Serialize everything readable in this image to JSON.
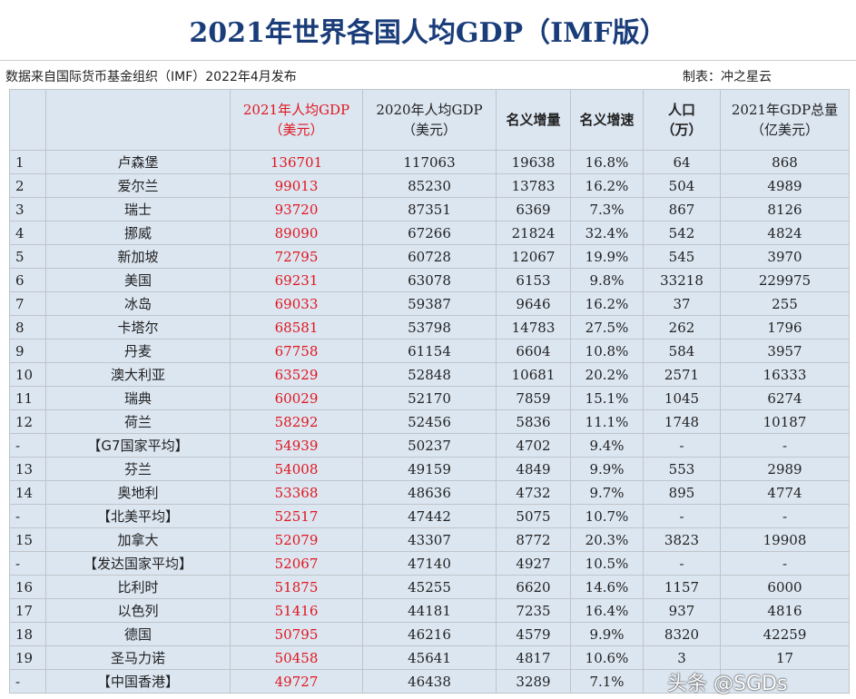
{
  "title": "2021年世界各国人均GDP（IMF版）",
  "source_note": "数据来自国际货币基金组织（IMF）2022年4月发布",
  "maker": "制表：冲之星云",
  "columns": {
    "gdp2021": [
      "2021年人均GDP",
      "（美元）"
    ],
    "gdp2020": [
      "2020年人均GDP",
      "（美元）"
    ],
    "growth": "名义增量",
    "rate": "名义增速",
    "pop": [
      "人口",
      "（万）"
    ],
    "total": [
      "2021年GDP总量",
      "（亿美元）"
    ]
  },
  "rows": [
    {
      "rank": "1",
      "country": "卢森堡",
      "gdp2021": "136701",
      "gdp2020": "117063",
      "growth": "19638",
      "rate": "16.8%",
      "pop": "64",
      "total": "868"
    },
    {
      "rank": "2",
      "country": "爱尔兰",
      "gdp2021": "99013",
      "gdp2020": "85230",
      "growth": "13783",
      "rate": "16.2%",
      "pop": "504",
      "total": "4989"
    },
    {
      "rank": "3",
      "country": "瑞士",
      "gdp2021": "93720",
      "gdp2020": "87351",
      "growth": "6369",
      "rate": "7.3%",
      "pop": "867",
      "total": "8126"
    },
    {
      "rank": "4",
      "country": "挪威",
      "gdp2021": "89090",
      "gdp2020": "67266",
      "growth": "21824",
      "rate": "32.4%",
      "pop": "542",
      "total": "4824"
    },
    {
      "rank": "5",
      "country": "新加坡",
      "gdp2021": "72795",
      "gdp2020": "60728",
      "growth": "12067",
      "rate": "19.9%",
      "pop": "545",
      "total": "3970"
    },
    {
      "rank": "6",
      "country": "美国",
      "gdp2021": "69231",
      "gdp2020": "63078",
      "growth": "6153",
      "rate": "9.8%",
      "pop": "33218",
      "total": "229975"
    },
    {
      "rank": "7",
      "country": "冰岛",
      "gdp2021": "69033",
      "gdp2020": "59387",
      "growth": "9646",
      "rate": "16.2%",
      "pop": "37",
      "total": "255"
    },
    {
      "rank": "8",
      "country": "卡塔尔",
      "gdp2021": "68581",
      "gdp2020": "53798",
      "growth": "14783",
      "rate": "27.5%",
      "pop": "262",
      "total": "1796"
    },
    {
      "rank": "9",
      "country": "丹麦",
      "gdp2021": "67758",
      "gdp2020": "61154",
      "growth": "6604",
      "rate": "10.8%",
      "pop": "584",
      "total": "3957"
    },
    {
      "rank": "10",
      "country": "澳大利亚",
      "gdp2021": "63529",
      "gdp2020": "52848",
      "growth": "10681",
      "rate": "20.2%",
      "pop": "2571",
      "total": "16333"
    },
    {
      "rank": "11",
      "country": "瑞典",
      "gdp2021": "60029",
      "gdp2020": "52170",
      "growth": "7859",
      "rate": "15.1%",
      "pop": "1045",
      "total": "6274"
    },
    {
      "rank": "12",
      "country": "荷兰",
      "gdp2021": "58292",
      "gdp2020": "52456",
      "growth": "5836",
      "rate": "11.1%",
      "pop": "1748",
      "total": "10187"
    },
    {
      "rank": "-",
      "country": "【G7国家平均】",
      "gdp2021": "54939",
      "gdp2020": "50237",
      "growth": "4702",
      "rate": "9.4%",
      "pop": "-",
      "total": "-"
    },
    {
      "rank": "13",
      "country": "芬兰",
      "gdp2021": "54008",
      "gdp2020": "49159",
      "growth": "4849",
      "rate": "9.9%",
      "pop": "553",
      "total": "2989"
    },
    {
      "rank": "14",
      "country": "奥地利",
      "gdp2021": "53368",
      "gdp2020": "48636",
      "growth": "4732",
      "rate": "9.7%",
      "pop": "895",
      "total": "4774"
    },
    {
      "rank": "-",
      "country": "【北美平均】",
      "gdp2021": "52517",
      "gdp2020": "47442",
      "growth": "5075",
      "rate": "10.7%",
      "pop": "-",
      "total": "-"
    },
    {
      "rank": "15",
      "country": "加拿大",
      "gdp2021": "52079",
      "gdp2020": "43307",
      "growth": "8772",
      "rate": "20.3%",
      "pop": "3823",
      "total": "19908"
    },
    {
      "rank": "-",
      "country": "【发达国家平均】",
      "gdp2021": "52067",
      "gdp2020": "47140",
      "growth": "4927",
      "rate": "10.5%",
      "pop": "-",
      "total": "-"
    },
    {
      "rank": "16",
      "country": "比利时",
      "gdp2021": "51875",
      "gdp2020": "45255",
      "growth": "6620",
      "rate": "14.6%",
      "pop": "1157",
      "total": "6000"
    },
    {
      "rank": "17",
      "country": "以色列",
      "gdp2021": "51416",
      "gdp2020": "44181",
      "growth": "7235",
      "rate": "16.4%",
      "pop": "937",
      "total": "4816"
    },
    {
      "rank": "18",
      "country": "德国",
      "gdp2021": "50795",
      "gdp2020": "46216",
      "growth": "4579",
      "rate": "9.9%",
      "pop": "8320",
      "total": "42259"
    },
    {
      "rank": "19",
      "country": "圣马力诺",
      "gdp2021": "50458",
      "gdp2020": "45641",
      "growth": "4817",
      "rate": "10.6%",
      "pop": "3",
      "total": "17"
    },
    {
      "rank": "-",
      "country": "【中国香港】",
      "gdp2021": "49727",
      "gdp2020": "46438",
      "growth": "3289",
      "rate": "7.1%",
      "pop": "",
      "total": ""
    }
  ],
  "watermark": "头条 @SGDs",
  "colors": {
    "header_text": "#1a3d7a",
    "highlight": "#e0161e",
    "cell_bg": "#dce6f1"
  }
}
